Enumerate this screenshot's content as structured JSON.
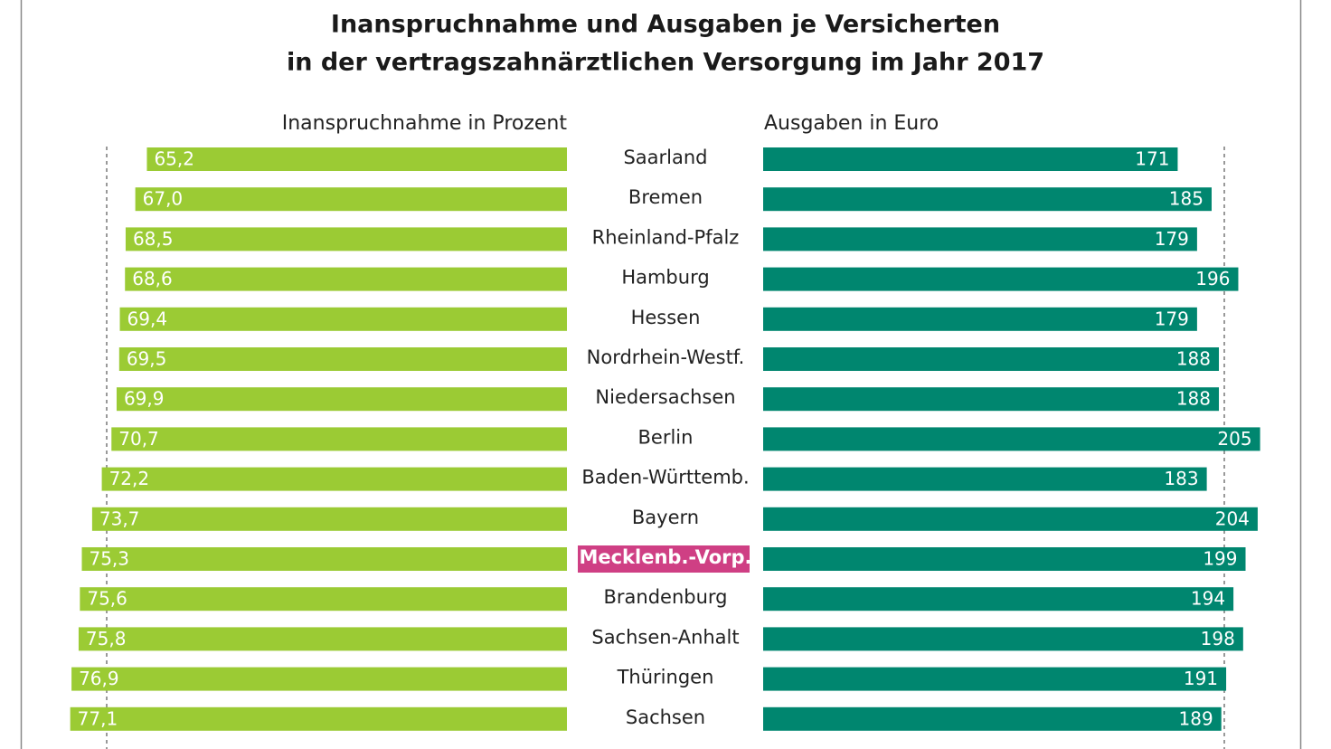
{
  "chart_data": [
    {
      "type": "bar",
      "orientation": "horizontal-left",
      "title": [
        "Inanspruchnahme und Ausgaben je Versicherten",
        "in der vertragszahnärztlichen Versorgung im Jahr 2017"
      ],
      "subtitle": "Inanspruchnahme in Prozent",
      "categories": [
        "Saarland",
        "Bremen",
        "Rheinland-Pfalz",
        "Hamburg",
        "Hessen",
        "Nordrhein-Westf.",
        "Niedersachsen",
        "Berlin",
        "Baden-Württemb.",
        "Bayern",
        "Mecklenb.-Vorp.",
        "Brandenburg",
        "Sachsen-Anhalt",
        "Thüringen",
        "Sachsen"
      ],
      "highlight": {
        "index": 10,
        "color": "#cf3f84"
      },
      "values": [
        65.2,
        67.0,
        68.5,
        68.6,
        69.4,
        69.5,
        69.9,
        70.7,
        72.2,
        73.7,
        75.3,
        75.6,
        75.8,
        76.9,
        77.1
      ],
      "value_labels": [
        "65,2",
        "67,0",
        "68,5",
        "68,6",
        "69,4",
        "69,5",
        "69,9",
        "70,7",
        "72,2",
        "73,7",
        "75,3",
        "75,6",
        "75,8",
        "76,9",
        "77,1"
      ],
      "color": "#9bcb34",
      "xlim": [
        0,
        80
      ]
    },
    {
      "type": "bar",
      "orientation": "horizontal-right",
      "subtitle": "Ausgaben in Euro",
      "values": [
        171,
        185,
        179,
        196,
        179,
        188,
        188,
        205,
        183,
        204,
        199,
        194,
        198,
        191,
        189
      ],
      "color": "#00866f",
      "xlim": [
        0,
        210
      ]
    }
  ]
}
